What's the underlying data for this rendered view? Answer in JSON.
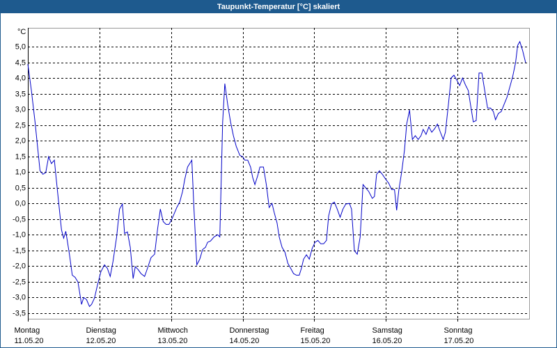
{
  "chart_data": {
    "type": "line",
    "title": "Taupunkt-Temperatur [°C] skaliert",
    "y_unit": "°C",
    "xlim": [
      0,
      7
    ],
    "xticks": [
      {
        "value": 0,
        "label": "Montag"
      },
      {
        "value": 1,
        "label": "Dienstag"
      },
      {
        "value": 2,
        "label": "Mittwoch"
      },
      {
        "value": 3,
        "label": "Donnerstag"
      },
      {
        "value": 4,
        "label": "Freitag"
      },
      {
        "value": 5,
        "label": "Samstag"
      },
      {
        "value": 6,
        "label": "Sonntag"
      }
    ],
    "xtick_dates": [
      "11.05.20",
      "12.05.20",
      "13.05.20",
      "14.05.20",
      "15.05.20",
      "16.05.20",
      "17.05.20"
    ],
    "ylim": [
      -3.68,
      5.6
    ],
    "yticks": [
      {
        "value": 5.0,
        "label": "5,0"
      },
      {
        "value": 4.5,
        "label": "4,5"
      },
      {
        "value": 4.0,
        "label": "4,0"
      },
      {
        "value": 3.5,
        "label": "3,5"
      },
      {
        "value": 3.0,
        "label": "3,0"
      },
      {
        "value": 2.5,
        "label": "2,5"
      },
      {
        "value": 2.0,
        "label": "2,0"
      },
      {
        "value": 1.5,
        "label": "1,5"
      },
      {
        "value": 1.0,
        "label": "1,0"
      },
      {
        "value": 0.5,
        "label": "0,5"
      },
      {
        "value": 0.0,
        "label": "0,0"
      },
      {
        "value": -0.5,
        "label": "-0,5"
      },
      {
        "value": -1.0,
        "label": "-1,0"
      },
      {
        "value": -1.5,
        "label": "-1,5"
      },
      {
        "value": -2.0,
        "label": "-2,0"
      },
      {
        "value": -2.5,
        "label": "-2,5"
      },
      {
        "value": -3.0,
        "label": "-3,0"
      },
      {
        "value": -3.5,
        "label": "-3,5"
      }
    ],
    "grid": true,
    "series": [
      {
        "color": "#0000c8",
        "x": [
          0.0,
          0.05,
          0.1,
          0.15,
          0.17,
          0.21,
          0.25,
          0.29,
          0.33,
          0.37,
          0.4,
          0.47,
          0.5,
          0.53,
          0.58,
          0.62,
          0.66,
          0.7,
          0.75,
          0.78,
          0.82,
          0.86,
          0.89,
          0.93,
          0.97,
          1.02,
          1.07,
          1.11,
          1.15,
          1.19,
          1.24,
          1.28,
          1.32,
          1.35,
          1.39,
          1.43,
          1.47,
          1.5,
          1.54,
          1.58,
          1.63,
          1.67,
          1.72,
          1.77,
          1.81,
          1.85,
          1.89,
          1.93,
          1.97,
          2.01,
          2.05,
          2.08,
          2.12,
          2.16,
          2.19,
          2.23,
          2.29,
          2.32,
          2.36,
          2.4,
          2.44,
          2.48,
          2.51,
          2.55,
          2.6,
          2.65,
          2.68,
          2.72,
          2.75,
          2.79,
          2.83,
          2.87,
          2.91,
          2.96,
          3.0,
          3.03,
          3.07,
          3.11,
          3.14,
          3.17,
          3.21,
          3.24,
          3.29,
          3.33,
          3.37,
          3.41,
          3.44,
          3.48,
          3.51,
          3.55,
          3.59,
          3.63,
          3.67,
          3.71,
          3.75,
          3.79,
          3.82,
          3.85,
          3.89,
          3.93,
          3.97,
          4.01,
          4.05,
          4.09,
          4.13,
          4.17,
          4.2,
          4.24,
          4.28,
          4.32,
          4.36,
          4.4,
          4.44,
          4.49,
          4.52,
          4.56,
          4.6,
          4.64,
          4.68,
          4.72,
          4.76,
          4.81,
          4.84,
          4.87,
          4.91,
          4.95,
          5.0,
          5.04,
          5.08,
          5.12,
          5.15,
          5.18,
          5.22,
          5.26,
          5.29,
          5.33,
          5.37,
          5.41,
          5.45,
          5.49,
          5.52,
          5.56,
          5.6,
          5.64,
          5.68,
          5.72,
          5.76,
          5.8,
          5.83,
          5.87,
          5.91,
          5.95,
          5.99,
          6.03,
          6.07,
          6.11,
          6.15,
          6.18,
          6.22,
          6.26,
          6.3,
          6.34,
          6.38,
          6.42,
          6.46,
          6.5,
          6.53,
          6.57,
          6.61,
          6.65,
          6.69,
          6.73,
          6.77,
          6.81,
          6.84,
          6.87,
          6.91,
          6.95
        ],
        "values": [
          4.44,
          3.6,
          2.6,
          1.49,
          1.04,
          0.93,
          0.98,
          1.49,
          1.27,
          1.38,
          0.71,
          -0.84,
          -1.11,
          -0.89,
          -1.62,
          -2.29,
          -2.36,
          -2.51,
          -3.22,
          -3.0,
          -3.07,
          -3.29,
          -3.22,
          -3.02,
          -2.62,
          -2.18,
          -1.96,
          -2.07,
          -2.33,
          -1.84,
          -1.07,
          -0.18,
          -0.02,
          -0.96,
          -0.91,
          -1.4,
          -2.4,
          -2.02,
          -2.11,
          -2.24,
          -2.33,
          -2.07,
          -1.73,
          -1.62,
          -0.84,
          -0.18,
          -0.58,
          -0.67,
          -0.67,
          -0.51,
          -0.29,
          -0.13,
          0.04,
          0.38,
          0.76,
          1.16,
          1.38,
          -0.18,
          -1.96,
          -1.78,
          -1.47,
          -1.4,
          -1.24,
          -1.2,
          -1.07,
          -1.0,
          -1.07,
          2.6,
          3.82,
          3.16,
          2.6,
          2.16,
          1.82,
          1.53,
          1.49,
          1.38,
          1.38,
          1.16,
          0.82,
          0.6,
          0.89,
          1.16,
          1.16,
          0.6,
          -0.13,
          0.0,
          -0.29,
          -0.62,
          -1.07,
          -1.4,
          -1.56,
          -1.91,
          -2.07,
          -2.24,
          -2.29,
          -2.29,
          -2.07,
          -1.78,
          -1.64,
          -1.78,
          -1.44,
          -1.24,
          -1.18,
          -1.29,
          -1.29,
          -1.18,
          -0.4,
          -0.02,
          0.04,
          -0.18,
          -0.44,
          -0.18,
          -0.02,
          0.0,
          -0.18,
          -1.51,
          -1.62,
          -1.07,
          0.6,
          0.49,
          0.38,
          0.16,
          0.22,
          0.93,
          1.04,
          0.93,
          0.76,
          0.64,
          0.44,
          0.44,
          -0.22,
          0.42,
          1.0,
          1.71,
          2.53,
          2.98,
          2.04,
          2.16,
          2.04,
          2.16,
          2.36,
          2.2,
          2.44,
          2.27,
          2.38,
          2.53,
          2.27,
          2.04,
          2.27,
          3.11,
          4.0,
          4.09,
          3.93,
          3.76,
          4.0,
          3.78,
          3.6,
          3.16,
          2.6,
          2.64,
          4.16,
          4.16,
          3.6,
          3.04,
          3.04,
          2.93,
          2.67,
          2.87,
          2.93,
          3.16,
          3.38,
          3.71,
          4.04,
          4.49,
          5.04,
          5.16,
          4.87,
          4.49
        ]
      }
    ]
  }
}
